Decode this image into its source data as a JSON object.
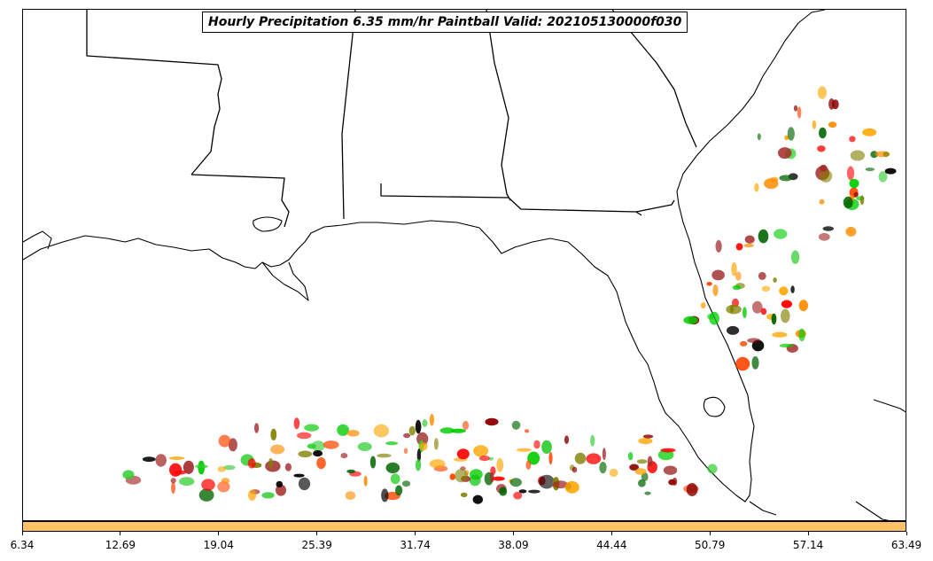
{
  "title": "Hourly Precipitation 6.35 mm/hr Paintball Valid: 202105130000f030",
  "colorbar": {
    "color": "#ffc266",
    "ticks": [
      "6.34",
      "12.69",
      "19.04",
      "25.39",
      "31.74",
      "38.09",
      "44.44",
      "50.79",
      "57.14",
      "63.49"
    ]
  },
  "member_colors": [
    "#ff0000",
    "#8b0000",
    "#000000",
    "#ff8c00",
    "#ffa500",
    "#00cc00",
    "#006400",
    "#808000",
    "#32cd32",
    "#a52a2a",
    "#ff4500"
  ]
}
